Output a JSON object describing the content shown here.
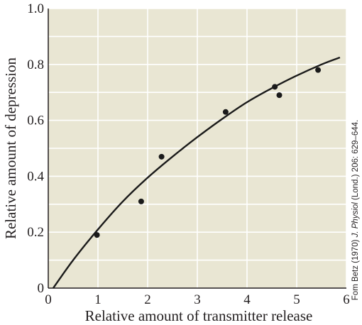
{
  "chart_data": {
    "type": "scatter",
    "xlabel": "Relative amount of transmitter release",
    "ylabel": "Relative amount of depression",
    "xlim": [
      0,
      6
    ],
    "ylim": [
      0,
      1.0
    ],
    "x_ticks": [
      "0",
      "1",
      "2",
      "3",
      "4",
      "5",
      "6"
    ],
    "y_ticks": [
      "0",
      "0.2",
      "0.4",
      "0.6",
      "0.8",
      "1.0"
    ],
    "grid": true,
    "points": [
      {
        "x": 0.98,
        "y": 0.19
      },
      {
        "x": 1.87,
        "y": 0.31
      },
      {
        "x": 2.28,
        "y": 0.47
      },
      {
        "x": 3.57,
        "y": 0.63
      },
      {
        "x": 4.56,
        "y": 0.72
      },
      {
        "x": 4.65,
        "y": 0.69
      },
      {
        "x": 5.43,
        "y": 0.78
      }
    ],
    "fit_curve": {
      "x": [
        0.1,
        0.5,
        1.0,
        1.5,
        2.0,
        2.5,
        3.0,
        3.5,
        4.0,
        4.5,
        5.0,
        5.5,
        5.87
      ],
      "y": [
        0.0,
        0.1,
        0.21,
        0.31,
        0.395,
        0.47,
        0.54,
        0.605,
        0.665,
        0.715,
        0.76,
        0.8,
        0.825
      ]
    },
    "colors": {
      "plot_background": "#e9e6d3",
      "grid": "#ffffff",
      "points": "#1a1a1a",
      "curve": "#1a1a1a",
      "text": "#231f20"
    }
  },
  "credit": {
    "prefix": "Fom Betz (1970) ",
    "journal": "J. Physiol",
    "suffix": " (Lond.) 206: 629–644."
  }
}
